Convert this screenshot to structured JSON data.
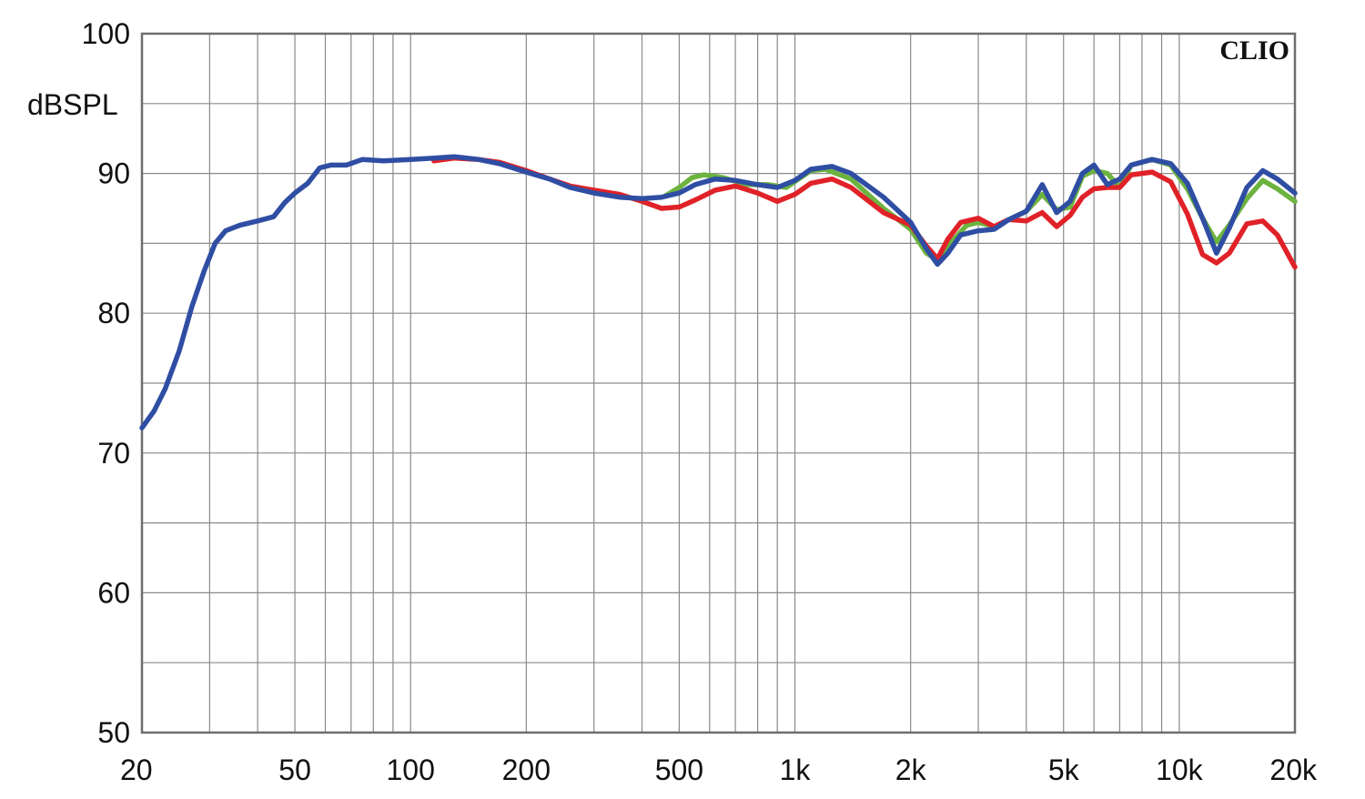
{
  "chart_data": {
    "type": "line",
    "title": "",
    "brand": "CLIO",
    "xlabel": "",
    "ylabel": "dBSPL",
    "xscale": "log",
    "xlim": [
      20,
      20000
    ],
    "ylim": [
      50,
      100
    ],
    "grid": true,
    "x_ticks": [
      {
        "value": 20,
        "label": "20"
      },
      {
        "value": 50,
        "label": "50"
      },
      {
        "value": 100,
        "label": "100"
      },
      {
        "value": 200,
        "label": "200"
      },
      {
        "value": 500,
        "label": "500"
      },
      {
        "value": 1000,
        "label": "1k"
      },
      {
        "value": 2000,
        "label": "2k"
      },
      {
        "value": 5000,
        "label": "5k"
      },
      {
        "value": 10000,
        "label": "10k"
      },
      {
        "value": 20000,
        "label": "20k"
      }
    ],
    "y_ticks": [
      {
        "value": 50,
        "label": "50"
      },
      {
        "value": 60,
        "label": "60"
      },
      {
        "value": 70,
        "label": "70"
      },
      {
        "value": 80,
        "label": "80"
      },
      {
        "value": 90,
        "label": "90"
      },
      {
        "value": 100,
        "label": "100"
      }
    ],
    "series": [
      {
        "color": "#6cb33f",
        "points": [
          [
            460,
            88.4
          ],
          [
            500,
            89.0
          ],
          [
            540,
            89.7
          ],
          [
            580,
            89.9
          ],
          [
            650,
            89.7
          ],
          [
            750,
            89.2
          ],
          [
            850,
            89.2
          ],
          [
            950,
            89.0
          ],
          [
            1100,
            90.2
          ],
          [
            1200,
            90.3
          ],
          [
            1400,
            89.6
          ],
          [
            1700,
            87.5
          ],
          [
            2000,
            86.0
          ],
          [
            2200,
            84.3
          ],
          [
            2350,
            83.8
          ],
          [
            2500,
            84.8
          ],
          [
            2800,
            86.3
          ],
          [
            3000,
            86.5
          ],
          [
            3300,
            86.2
          ],
          [
            3600,
            86.7
          ],
          [
            4000,
            87.3
          ],
          [
            4400,
            88.5
          ],
          [
            4800,
            87.4
          ],
          [
            5200,
            87.6
          ],
          [
            5600,
            89.8
          ],
          [
            6000,
            90.2
          ],
          [
            6500,
            90.0
          ],
          [
            7000,
            89.0
          ],
          [
            7500,
            90.6
          ],
          [
            8500,
            91.0
          ],
          [
            9500,
            90.6
          ],
          [
            10500,
            88.9
          ],
          [
            11500,
            86.8
          ],
          [
            12500,
            85.1
          ],
          [
            13500,
            86.3
          ],
          [
            15000,
            88.2
          ],
          [
            16500,
            89.5
          ],
          [
            18000,
            88.9
          ],
          [
            20000,
            88.0
          ]
        ]
      },
      {
        "color": "#e02228",
        "points": [
          [
            115,
            90.9
          ],
          [
            130,
            91.1
          ],
          [
            150,
            91.0
          ],
          [
            170,
            90.8
          ],
          [
            200,
            90.2
          ],
          [
            230,
            89.6
          ],
          [
            260,
            89.1
          ],
          [
            300,
            88.8
          ],
          [
            350,
            88.5
          ],
          [
            400,
            88.0
          ],
          [
            450,
            87.5
          ],
          [
            500,
            87.6
          ],
          [
            550,
            88.1
          ],
          [
            620,
            88.8
          ],
          [
            700,
            89.1
          ],
          [
            800,
            88.6
          ],
          [
            900,
            88.0
          ],
          [
            1000,
            88.5
          ],
          [
            1100,
            89.3
          ],
          [
            1250,
            89.6
          ],
          [
            1400,
            89.0
          ],
          [
            1700,
            87.2
          ],
          [
            2000,
            86.3
          ],
          [
            2200,
            84.8
          ],
          [
            2350,
            83.9
          ],
          [
            2500,
            85.3
          ],
          [
            2700,
            86.5
          ],
          [
            3000,
            86.8
          ],
          [
            3300,
            86.2
          ],
          [
            3600,
            86.7
          ],
          [
            4000,
            86.6
          ],
          [
            4400,
            87.2
          ],
          [
            4800,
            86.2
          ],
          [
            5200,
            87.0
          ],
          [
            5600,
            88.3
          ],
          [
            6000,
            88.9
          ],
          [
            6500,
            89.0
          ],
          [
            7000,
            89.0
          ],
          [
            7500,
            89.9
          ],
          [
            8500,
            90.1
          ],
          [
            9500,
            89.4
          ],
          [
            10500,
            87.1
          ],
          [
            11500,
            84.2
          ],
          [
            12500,
            83.6
          ],
          [
            13500,
            84.3
          ],
          [
            15000,
            86.4
          ],
          [
            16500,
            86.6
          ],
          [
            18000,
            85.6
          ],
          [
            20000,
            83.3
          ]
        ]
      },
      {
        "color": "#2f4ea3",
        "points": [
          [
            20,
            71.8
          ],
          [
            21.5,
            73.0
          ],
          [
            23,
            74.6
          ],
          [
            25,
            77.3
          ],
          [
            27,
            80.5
          ],
          [
            29,
            83.0
          ],
          [
            31,
            85.0
          ],
          [
            33,
            85.9
          ],
          [
            36,
            86.3
          ],
          [
            40,
            86.6
          ],
          [
            44,
            86.9
          ],
          [
            47,
            87.9
          ],
          [
            50,
            88.6
          ],
          [
            54,
            89.3
          ],
          [
            58,
            90.4
          ],
          [
            62,
            90.6
          ],
          [
            68,
            90.6
          ],
          [
            75,
            91.0
          ],
          [
            85,
            90.9
          ],
          [
            100,
            91.0
          ],
          [
            115,
            91.1
          ],
          [
            130,
            91.2
          ],
          [
            150,
            91.0
          ],
          [
            170,
            90.7
          ],
          [
            200,
            90.1
          ],
          [
            230,
            89.6
          ],
          [
            260,
            89.0
          ],
          [
            300,
            88.6
          ],
          [
            350,
            88.3
          ],
          [
            400,
            88.2
          ],
          [
            450,
            88.3
          ],
          [
            500,
            88.6
          ],
          [
            550,
            89.2
          ],
          [
            620,
            89.6
          ],
          [
            700,
            89.5
          ],
          [
            800,
            89.2
          ],
          [
            900,
            89.0
          ],
          [
            1000,
            89.5
          ],
          [
            1100,
            90.3
          ],
          [
            1250,
            90.5
          ],
          [
            1400,
            90.0
          ],
          [
            1700,
            88.3
          ],
          [
            2000,
            86.5
          ],
          [
            2200,
            84.6
          ],
          [
            2350,
            83.5
          ],
          [
            2500,
            84.3
          ],
          [
            2700,
            85.6
          ],
          [
            3000,
            85.9
          ],
          [
            3300,
            86.0
          ],
          [
            3600,
            86.7
          ],
          [
            4000,
            87.3
          ],
          [
            4400,
            89.2
          ],
          [
            4800,
            87.2
          ],
          [
            5200,
            88.0
          ],
          [
            5600,
            90.0
          ],
          [
            6000,
            90.6
          ],
          [
            6500,
            89.2
          ],
          [
            7000,
            89.6
          ],
          [
            7500,
            90.6
          ],
          [
            8500,
            91.0
          ],
          [
            9500,
            90.7
          ],
          [
            10500,
            89.3
          ],
          [
            11500,
            86.8
          ],
          [
            12500,
            84.3
          ],
          [
            13500,
            86.1
          ],
          [
            15000,
            89.0
          ],
          [
            16500,
            90.2
          ],
          [
            18000,
            89.6
          ],
          [
            20000,
            88.6
          ]
        ]
      }
    ]
  }
}
